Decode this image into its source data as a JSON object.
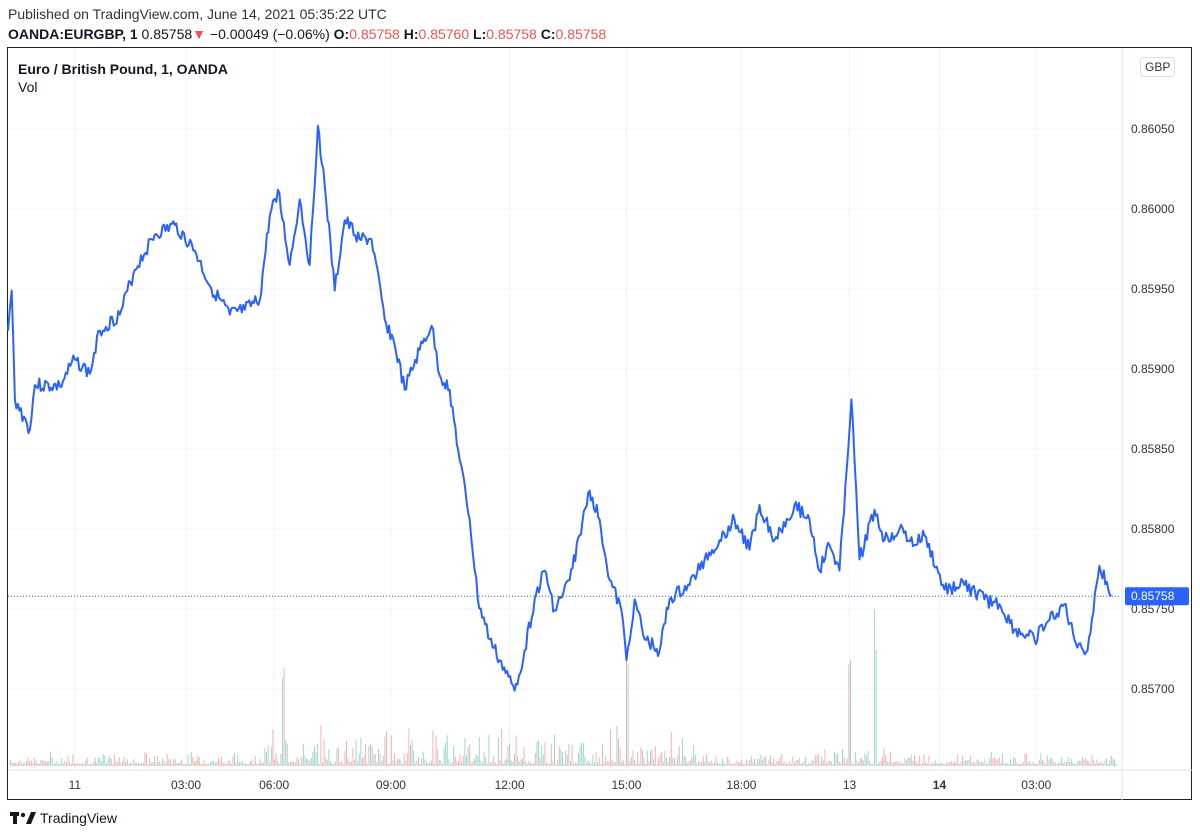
{
  "header": {
    "published": "Published on TradingView.com, June 14, 2021 05:35:22 UTC",
    "symbol": "OANDA:EURGBP, 1",
    "last": "0.85758",
    "change": "−0.00049 (−0.06%)",
    "o_label": "O:",
    "o": "0.85758",
    "h_label": "H:",
    "h": "0.85760",
    "l_label": "L:",
    "l": "0.85758",
    "c_label": "C:",
    "c": "0.85758"
  },
  "legend": {
    "title": "Euro / British Pound, 1, OANDA",
    "vol": "Vol"
  },
  "currency": "GBP",
  "footer": {
    "brand": "TradingView"
  },
  "colors": {
    "line": "#2962ff",
    "down": "#ef5350",
    "up": "#26a69a",
    "grid": "#f0f3fa"
  },
  "chart_data": {
    "type": "line",
    "title": "Euro / British Pound, 1, OANDA",
    "xunit": "1-minute bar index",
    "xlim": [
      0,
      1780
    ],
    "ylim": [
      0.856494,
      0.861006
    ],
    "current_price": 0.85758,
    "current_price_label": "0.85758",
    "y_ticks": [
      {
        "v": 0.8605,
        "label": "0.86050"
      },
      {
        "v": 0.86,
        "label": "0.86000"
      },
      {
        "v": 0.8595,
        "label": "0.85950"
      },
      {
        "v": 0.859,
        "label": "0.85900"
      },
      {
        "v": 0.8585,
        "label": "0.85850"
      },
      {
        "v": 0.858,
        "label": "0.85800"
      },
      {
        "v": 0.8575,
        "label": "0.85750"
      },
      {
        "v": 0.857,
        "label": "0.85700"
      }
    ],
    "x_ticks": [
      {
        "x": 107,
        "label": "11",
        "bold": false
      },
      {
        "x": 285,
        "label": "03:00",
        "bold": false
      },
      {
        "x": 426,
        "label": "06:00",
        "bold": false
      },
      {
        "x": 613,
        "label": "09:00",
        "bold": false
      },
      {
        "x": 803,
        "label": "12:00",
        "bold": false
      },
      {
        "x": 990,
        "label": "15:00",
        "bold": false
      },
      {
        "x": 1174,
        "label": "18:00",
        "bold": false
      },
      {
        "x": 1347,
        "label": "13",
        "bold": false
      },
      {
        "x": 1491,
        "label": "14",
        "bold": true
      },
      {
        "x": 1646,
        "label": "03:00",
        "bold": false
      }
    ],
    "series": [
      {
        "name": "EURGBP close",
        "points": [
          [
            0,
            0.85924
          ],
          [
            6,
            0.85949
          ],
          [
            11,
            0.85881
          ],
          [
            35,
            0.85862
          ],
          [
            43,
            0.8589
          ],
          [
            83,
            0.85889
          ],
          [
            107,
            0.85906
          ],
          [
            131,
            0.85897
          ],
          [
            147,
            0.85924
          ],
          [
            179,
            0.85934
          ],
          [
            203,
            0.85962
          ],
          [
            235,
            0.85984
          ],
          [
            267,
            0.8599
          ],
          [
            299,
            0.85974
          ],
          [
            323,
            0.85952
          ],
          [
            355,
            0.85934
          ],
          [
            379,
            0.85937
          ],
          [
            403,
            0.85943
          ],
          [
            419,
            0.85996
          ],
          [
            432,
            0.86012
          ],
          [
            451,
            0.85965
          ],
          [
            467,
            0.86006
          ],
          [
            483,
            0.85965
          ],
          [
            496,
            0.86052
          ],
          [
            507,
            0.86015
          ],
          [
            523,
            0.85949
          ],
          [
            539,
            0.85993
          ],
          [
            563,
            0.85981
          ],
          [
            582,
            0.85981
          ],
          [
            603,
            0.85931
          ],
          [
            619,
            0.85915
          ],
          [
            635,
            0.85887
          ],
          [
            659,
            0.85912
          ],
          [
            678,
            0.85927
          ],
          [
            691,
            0.85896
          ],
          [
            707,
            0.85887
          ],
          [
            723,
            0.85843
          ],
          [
            739,
            0.85806
          ],
          [
            752,
            0.85756
          ],
          [
            771,
            0.85731
          ],
          [
            787,
            0.85718
          ],
          [
            811,
            0.85699
          ],
          [
            827,
            0.85724
          ],
          [
            843,
            0.85756
          ],
          [
            859,
            0.85774
          ],
          [
            875,
            0.85749
          ],
          [
            899,
            0.85768
          ],
          [
            915,
            0.85796
          ],
          [
            931,
            0.85824
          ],
          [
            947,
            0.85806
          ],
          [
            963,
            0.85768
          ],
          [
            982,
            0.85749
          ],
          [
            990,
            0.85718
          ],
          [
            1003,
            0.85756
          ],
          [
            1019,
            0.85731
          ],
          [
            1043,
            0.85724
          ],
          [
            1059,
            0.85756
          ],
          [
            1091,
            0.85765
          ],
          [
            1115,
            0.85781
          ],
          [
            1139,
            0.85793
          ],
          [
            1163,
            0.85806
          ],
          [
            1187,
            0.85787
          ],
          [
            1203,
            0.85815
          ],
          [
            1227,
            0.85793
          ],
          [
            1259,
            0.85815
          ],
          [
            1283,
            0.85806
          ],
          [
            1299,
            0.85774
          ],
          [
            1315,
            0.8579
          ],
          [
            1331,
            0.85774
          ],
          [
            1350,
            0.85881
          ],
          [
            1363,
            0.85781
          ],
          [
            1387,
            0.85812
          ],
          [
            1403,
            0.85793
          ],
          [
            1427,
            0.858
          ],
          [
            1451,
            0.8579
          ],
          [
            1467,
            0.85796
          ],
          [
            1499,
            0.85762
          ],
          [
            1531,
            0.85765
          ],
          [
            1563,
            0.85756
          ],
          [
            1587,
            0.85753
          ],
          [
            1611,
            0.85737
          ],
          [
            1643,
            0.85731
          ],
          [
            1667,
            0.85743
          ],
          [
            1691,
            0.85753
          ],
          [
            1707,
            0.85731
          ],
          [
            1728,
            0.85724
          ],
          [
            1747,
            0.85777
          ],
          [
            1766,
            0.85758
          ]
        ]
      }
    ],
    "volume_spikes": [
      [
        990,
        1.0
      ],
      [
        1347,
        0.9
      ],
      [
        1387,
        1.0
      ],
      [
        440,
        0.7
      ]
    ]
  }
}
